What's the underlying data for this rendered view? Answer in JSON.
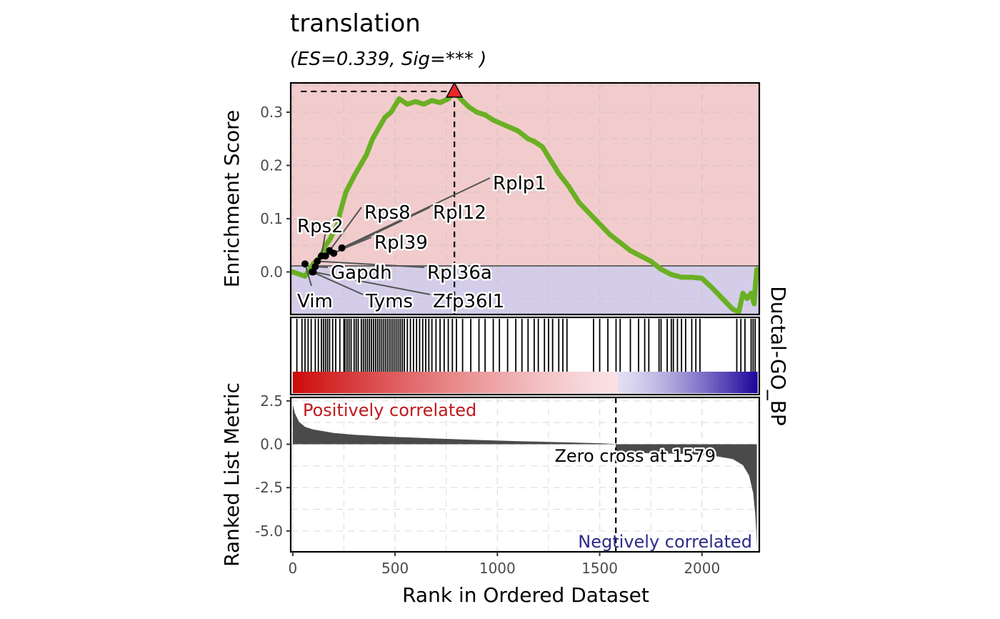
{
  "title": "translation",
  "subtitle": "(ES=0.339, Sig=*** )",
  "facet_label": "Ductal-GO_BP",
  "colors": {
    "es_line": "#6ab023",
    "pos_band": "#f2cccd",
    "neg_band": "#d3cdea",
    "peak_marker": "#e8262a",
    "pos_text": "#c0191c",
    "neg_text": "#2e2a87",
    "metric_fill": "#4a4a4a",
    "heat_pos": "#cc0000",
    "heat_neg": "#1a0099"
  },
  "chart_data": [
    {
      "type": "line",
      "name": "enrichment-score",
      "ylabel": "Enrichment Score",
      "xlim": [
        -10,
        2280
      ],
      "ylim": [
        -0.08,
        0.355
      ],
      "yticks": [
        0.0,
        0.1,
        0.2,
        0.3
      ],
      "ytick_labels": [
        "0.0",
        "0.1",
        "0.2",
        "0.3"
      ],
      "grid": true,
      "peak": {
        "x": 790,
        "y": 0.339
      },
      "x": [
        0,
        60,
        100,
        140,
        160,
        180,
        220,
        230,
        260,
        300,
        330,
        360,
        390,
        420,
        450,
        480,
        520,
        560,
        600,
        640,
        680,
        720,
        760,
        790,
        820,
        860,
        900,
        940,
        980,
        1040,
        1100,
        1150,
        1180,
        1220,
        1260,
        1300,
        1350,
        1400,
        1450,
        1500,
        1550,
        1600,
        1650,
        1700,
        1750,
        1800,
        1850,
        1900,
        1950,
        2000,
        2050,
        2100,
        2150,
        2180,
        2200,
        2220,
        2240,
        2255,
        2262,
        2268
      ],
      "y": [
        0.0,
        -0.008,
        0.015,
        0.03,
        0.05,
        0.06,
        0.09,
        0.11,
        0.15,
        0.18,
        0.2,
        0.22,
        0.25,
        0.27,
        0.29,
        0.3,
        0.325,
        0.315,
        0.32,
        0.315,
        0.322,
        0.318,
        0.325,
        0.339,
        0.325,
        0.31,
        0.3,
        0.295,
        0.285,
        0.275,
        0.265,
        0.25,
        0.245,
        0.235,
        0.21,
        0.185,
        0.16,
        0.13,
        0.11,
        0.09,
        0.07,
        0.055,
        0.04,
        0.03,
        0.02,
        0.005,
        -0.005,
        -0.01,
        -0.01,
        -0.012,
        -0.03,
        -0.05,
        -0.07,
        -0.075,
        -0.04,
        -0.05,
        -0.04,
        -0.06,
        -0.02,
        0.005
      ],
      "hits": [
        40,
        60,
        75,
        85,
        95,
        110,
        125,
        140,
        160,
        180,
        200,
        220,
        240
      ],
      "gene_labels": [
        {
          "label": "Rplp1",
          "x": 240,
          "y": 0.045
        },
        {
          "label": "Rpl12",
          "x": 200,
          "y": 0.035
        },
        {
          "label": "Rps8",
          "x": 180,
          "y": 0.04
        },
        {
          "label": "Rps2",
          "x": 140,
          "y": 0.03
        },
        {
          "label": "Rpl39",
          "x": 160,
          "y": 0.03
        },
        {
          "label": "Rpl36a",
          "x": 120,
          "y": 0.02
        },
        {
          "label": "Gapdh",
          "x": 110,
          "y": 0.01
        },
        {
          "label": "Zfp36l1",
          "x": 100,
          "y": 0.0
        },
        {
          "label": "Tyms",
          "x": 95,
          "y": 0.0
        },
        {
          "label": "Vim",
          "x": 60,
          "y": 0.015
        }
      ]
    },
    {
      "type": "table",
      "name": "gene-set-hits",
      "ranks": [
        20,
        45,
        60,
        75,
        90,
        110,
        125,
        140,
        150,
        160,
        170,
        180,
        195,
        210,
        230,
        250,
        255,
        265,
        275,
        285,
        300,
        310,
        320,
        335,
        345,
        355,
        365,
        375,
        385,
        395,
        405,
        415,
        425,
        435,
        445,
        455,
        465,
        475,
        485,
        495,
        505,
        515,
        525,
        535,
        545,
        560,
        575,
        590,
        605,
        620,
        635,
        650,
        665,
        680,
        700,
        720,
        740,
        760,
        780,
        800,
        830,
        870,
        910,
        940,
        980,
        1010,
        1050,
        1090,
        1120,
        1150,
        1180,
        1200,
        1230,
        1250,
        1270,
        1300,
        1320,
        1340,
        1470,
        1500,
        1540,
        1580,
        1600,
        1650,
        1690,
        1720,
        1740,
        1790,
        1800,
        1830,
        1850,
        1860,
        1880,
        1900,
        1920,
        1950,
        1970,
        1990,
        2170,
        2190,
        2210,
        2240,
        2250,
        2260
      ]
    },
    {
      "type": "area",
      "name": "ranked-list-metric",
      "xlabel": "Rank in Ordered Dataset",
      "ylabel": "Ranked List Metric",
      "xlim": [
        -10,
        2280
      ],
      "ylim": [
        -6.2,
        2.7
      ],
      "xticks": [
        0,
        500,
        1000,
        1500,
        2000
      ],
      "xtick_labels": [
        "0",
        "500",
        "1000",
        "1500",
        "2000"
      ],
      "yticks": [
        2.5,
        0.0,
        -2.5,
        -5.0
      ],
      "ytick_labels": [
        "2.5",
        "0.0",
        "-2.5",
        "-5.0"
      ],
      "grid": true,
      "zero_cross": 1579,
      "zero_cross_label": "Zero cross at 1579",
      "pos_label": "Positively correlated",
      "neg_label": "Negtively correlated",
      "x": [
        0,
        10,
        30,
        60,
        100,
        150,
        200,
        300,
        400,
        500,
        700,
        900,
        1100,
        1300,
        1500,
        1578,
        1580,
        1700,
        1900,
        2050,
        2150,
        2200,
        2230,
        2250,
        2260,
        2265,
        2268
      ],
      "y": [
        2.3,
        1.8,
        1.3,
        1.0,
        0.85,
        0.75,
        0.65,
        0.55,
        0.48,
        0.42,
        0.33,
        0.25,
        0.18,
        0.12,
        0.06,
        0.01,
        -0.45,
        -0.5,
        -0.55,
        -0.65,
        -0.85,
        -1.2,
        -1.8,
        -2.8,
        -4.0,
        -5.0,
        -6.0
      ]
    }
  ]
}
